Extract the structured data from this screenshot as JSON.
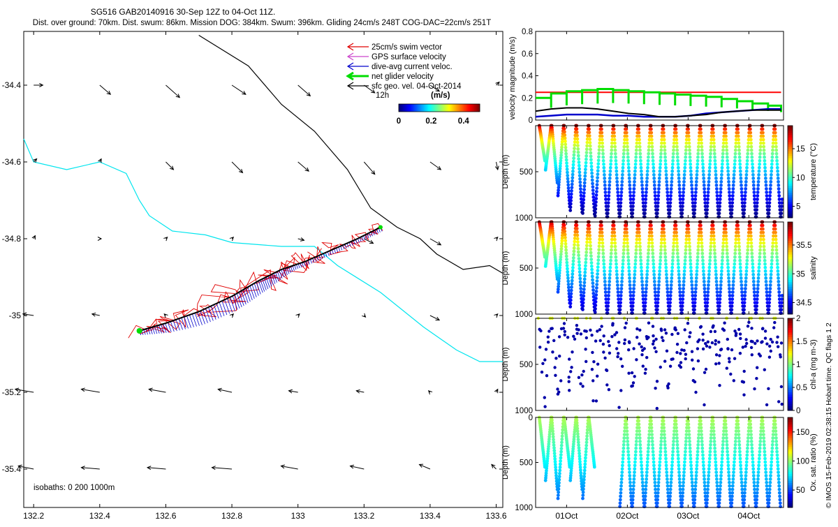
{
  "header": {
    "title": "SG516 GAB20140916 30-Sep 12Z to 04-Oct 11Z.",
    "subtitle": "Dist. over ground: 70km. Dist. swum: 86km. Mission DOG: 384km. Swum: 396km. Gliding 24cm/s 248T COG-DAC=22cm/s 251T"
  },
  "colors": {
    "swim": "#e00000",
    "gps": "#cc44cc",
    "dac": "#0000cc",
    "net": "#00dd00",
    "geo": "#000000",
    "isobath200": "#00e5ee",
    "isobath1000": "#000000",
    "target_line": "#ff0000"
  },
  "legend": {
    "items": [
      {
        "label": "25cm/s swim vector",
        "color": "#e00000"
      },
      {
        "label": "GPS surface velocity",
        "color": "#cc44cc"
      },
      {
        "label": "dive-avg current veloc.",
        "color": "#0000cc"
      },
      {
        "label": "net glider velocity",
        "color": "#00dd00"
      },
      {
        "label": "sfc geo. vel. 04-Oct-2014",
        "color": "#000000"
      }
    ],
    "scale_label": "12h",
    "units": "(m/s)",
    "colorbar_ticks": [
      "0",
      "0.2",
      "0.4"
    ]
  },
  "isobaths_label": "isobaths: 0   200   1000m",
  "credit": "© IMOS 15-Feb-2019 02:38:15 Hobart time. QC flags 1  2",
  "chart_data": [
    {
      "type": "scatter",
      "name": "glider-track-map",
      "xlabel": "",
      "ylabel": "",
      "xlim": [
        132.17,
        133.62
      ],
      "ylim": [
        -35.5,
        -34.26
      ],
      "x_ticks": [
        132.2,
        132.4,
        132.6,
        132.8,
        133,
        133.2,
        133.4,
        133.6
      ],
      "x_tick_labels": [
        "132.2",
        "132.4",
        "132.6",
        "132.8",
        "133",
        "133.2",
        "133.4",
        "133.6"
      ],
      "y_ticks": [
        -34.4,
        -34.6,
        -34.8,
        -35,
        -35.2,
        -35.4
      ],
      "y_tick_labels": [
        "-34.4",
        "-34.6",
        "-34.8",
        "-35",
        "-35.2",
        "-35.4"
      ],
      "track": {
        "lon": [
          132.52,
          132.6,
          132.7,
          132.8,
          132.88,
          132.95,
          133.02,
          133.1,
          133.18,
          133.25
        ],
        "lat": [
          -35.04,
          -35.02,
          -34.99,
          -34.95,
          -34.91,
          -34.88,
          -34.86,
          -34.83,
          -34.8,
          -34.77
        ]
      },
      "isobath_200m": {
        "lon": [
          132.17,
          132.2,
          132.3,
          132.4,
          132.48,
          132.52,
          132.55,
          132.62,
          132.72,
          132.8,
          132.95,
          133.05,
          133.12,
          133.25,
          133.38,
          133.48,
          133.55,
          133.62
        ],
        "lat": [
          -34.54,
          -34.6,
          -34.62,
          -34.6,
          -34.63,
          -34.7,
          -34.74,
          -34.78,
          -34.79,
          -34.81,
          -34.82,
          -34.82,
          -34.87,
          -34.94,
          -35.03,
          -35.09,
          -35.12,
          -35.12
        ]
      },
      "isobath_1000m": {
        "lon": [
          132.7,
          132.85,
          132.95,
          133.05,
          133.15,
          133.22,
          133.3,
          133.37,
          133.42,
          133.5,
          133.58,
          133.62
        ],
        "lat": [
          -34.27,
          -34.35,
          -34.45,
          -34.52,
          -34.62,
          -34.72,
          -34.77,
          -34.8,
          -34.84,
          -34.88,
          -34.87,
          -34.89
        ]
      },
      "geostrophic_vectors": {
        "lon": [
          132.2,
          132.4,
          132.6,
          132.8,
          133.0,
          133.2,
          133.4,
          133.6,
          132.2,
          132.4,
          132.6,
          132.8,
          133.0,
          133.2,
          133.4,
          133.6,
          132.2,
          132.4,
          132.6,
          132.8,
          133.0,
          133.2,
          133.4,
          133.6,
          132.2,
          132.4,
          132.6,
          132.8,
          133.0,
          133.2,
          133.4,
          133.6,
          132.2,
          132.4,
          132.6,
          132.8,
          133.0,
          133.2,
          133.4,
          133.6,
          132.2,
          132.4,
          132.6,
          132.8,
          133.0,
          133.2,
          133.4,
          133.6
        ],
        "lat": [
          -34.4,
          -34.4,
          -34.4,
          -34.4,
          -34.4,
          -34.4,
          -34.4,
          -34.4,
          -34.6,
          -34.6,
          -34.6,
          -34.6,
          -34.6,
          -34.6,
          -34.6,
          -34.6,
          -34.8,
          -34.8,
          -34.8,
          -34.8,
          -34.8,
          -34.8,
          -34.8,
          -34.8,
          -35.0,
          -35.0,
          -35.0,
          -35.0,
          -35.0,
          -35.0,
          -35.0,
          -35.0,
          -35.2,
          -35.2,
          -35.2,
          -35.2,
          -35.2,
          -35.2,
          -35.2,
          -35.2,
          -35.4,
          -35.4,
          -35.4,
          -35.4,
          -35.4,
          -35.4,
          -35.4,
          -35.4
        ],
        "u": [
          0.06,
          0.07,
          0.09,
          0.09,
          0.08,
          0.07,
          0.06,
          0.02,
          0.02,
          0.01,
          0.05,
          0.07,
          0.07,
          0.07,
          0.07,
          0.01,
          0.01,
          0.01,
          0.01,
          0.01,
          0.04,
          0.06,
          0.07,
          0.01,
          -0.07,
          -0.05,
          -0.01,
          0.01,
          0.01,
          0.01,
          0.06,
          0.01,
          -0.12,
          -0.12,
          -0.11,
          -0.09,
          -0.06,
          -0.05,
          -0.01,
          0.01,
          -0.1,
          -0.12,
          -0.12,
          -0.13,
          -0.11,
          -0.09,
          -0.07,
          -0.03
        ],
        "v": [
          0.0,
          -0.06,
          -0.08,
          -0.06,
          -0.07,
          -0.05,
          -0.04,
          0.02,
          0.02,
          0.02,
          -0.05,
          -0.07,
          -0.06,
          -0.08,
          -0.05,
          -0.05,
          0.02,
          0.0,
          0.01,
          0.01,
          -0.01,
          -0.03,
          -0.04,
          0.01,
          0.01,
          0.01,
          0.01,
          0.01,
          0.01,
          -0.01,
          -0.03,
          0.01,
          0.02,
          0.02,
          0.02,
          0.02,
          0.01,
          0.01,
          0.01,
          0.02,
          0.02,
          0.01,
          0.01,
          0.01,
          0.02,
          0.02,
          0.03,
          0.03
        ]
      }
    },
    {
      "type": "line",
      "name": "velocity-magnitude",
      "ylabel": "velocity magnitude (m/s)",
      "ylim": [
        0,
        0.8
      ],
      "y_ticks": [
        0,
        0.2,
        0.4,
        0.6,
        0.8
      ],
      "y_tick_labels": [
        "0",
        "0.2",
        "0.4",
        "0.6",
        "0.8"
      ],
      "x_days": [
        0,
        0.25,
        0.5,
        0.75,
        1,
        1.25,
        1.5,
        1.75,
        2,
        2.25,
        2.5,
        2.75,
        3,
        3.25,
        3.5,
        3.75,
        3.96
      ],
      "series": [
        {
          "name": "target speed",
          "values": [
            0.25,
            0.25,
            0.25,
            0.25,
            0.25,
            0.25,
            0.25,
            0.25,
            0.25,
            0.25,
            0.25,
            0.25,
            0.25,
            0.25,
            0.25,
            0.25,
            0.25
          ]
        },
        {
          "name": "net glider velocity",
          "values": [
            0.2,
            0.24,
            0.26,
            0.27,
            0.28,
            0.27,
            0.26,
            0.25,
            0.24,
            0.23,
            0.22,
            0.21,
            0.19,
            0.17,
            0.15,
            0.13,
            0.12
          ]
        },
        {
          "name": "dive-avg current",
          "values": [
            0.03,
            0.04,
            0.05,
            0.05,
            0.05,
            0.04,
            0.04,
            0.03,
            0.03,
            0.03,
            0.04,
            0.06,
            0.07,
            0.08,
            0.09,
            0.1,
            0.1
          ]
        },
        {
          "name": "sfc geo. vel.",
          "values": [
            0.08,
            0.1,
            0.11,
            0.11,
            0.1,
            0.08,
            0.06,
            0.05,
            0.03,
            0.03,
            0.04,
            0.05,
            0.07,
            0.08,
            0.09,
            0.09,
            0.09
          ]
        }
      ]
    },
    {
      "type": "scatter",
      "name": "temperature-section",
      "ylabel": "Depth (m)",
      "colorbar_label": "temperature (°C)",
      "clim": [
        3,
        19
      ],
      "colorbar_ticks": [
        "5",
        "10",
        "15"
      ],
      "y_ticks": [
        "500",
        "1000"
      ],
      "max_depths": [
        380,
        480,
        620,
        760,
        880,
        920,
        940,
        950,
        960,
        980,
        990,
        990,
        990,
        990,
        990,
        990,
        990,
        990,
        990,
        990,
        990,
        990,
        990,
        990,
        990,
        990,
        990,
        990,
        990,
        990,
        990,
        990,
        990,
        990,
        990,
        990,
        990,
        990,
        990,
        990
      ]
    },
    {
      "type": "scatter",
      "name": "salinity-section",
      "ylabel": "Depth (m)",
      "colorbar_label": "salinity",
      "clim": [
        34.3,
        35.9
      ],
      "colorbar_ticks": [
        "34.5",
        "35",
        "35.5"
      ],
      "y_ticks": [
        "500",
        "1000"
      ],
      "max_depths": [
        380,
        480,
        620,
        760,
        880,
        920,
        940,
        950,
        960,
        980,
        990,
        990,
        990,
        990,
        990,
        990,
        990,
        990,
        990,
        990,
        990,
        990,
        990,
        990,
        990,
        990,
        990,
        990,
        990,
        990,
        990,
        990,
        990,
        990,
        990,
        990,
        990,
        990,
        990,
        990
      ]
    },
    {
      "type": "scatter",
      "name": "chlorophyll-section",
      "ylabel": "Depth (m)",
      "colorbar_label": "chl-a (mg m-3)",
      "clim": [
        0,
        2
      ],
      "colorbar_ticks": [
        "0",
        "0.5",
        "1",
        "1.5",
        "2"
      ],
      "y_ticks": [
        "500",
        "1000"
      ]
    },
    {
      "type": "scatter",
      "name": "oxygen-section",
      "ylabel": "Depth (m)",
      "colorbar_label": "Ox. sat. ratio (%)",
      "clim": [
        20,
        175
      ],
      "colorbar_ticks": [
        "50",
        "100",
        "150"
      ],
      "y_ticks": [
        "0",
        "500",
        "1000"
      ],
      "x_tick_labels": [
        "01Oct",
        "02Oct",
        "03Oct",
        "04Oct"
      ],
      "profile_groups": [
        [
          0,
          0.9
        ],
        [
          1.3,
          2.3
        ],
        [
          2.35,
          3.9
        ]
      ]
    }
  ]
}
